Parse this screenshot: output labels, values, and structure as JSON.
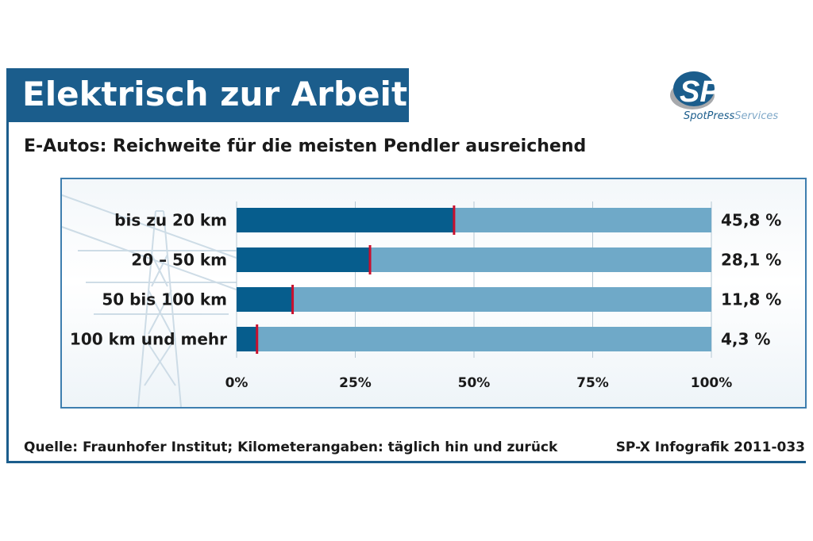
{
  "header": {
    "title": "Elektrisch zur Arbeit",
    "subtitle": "E-Autos: Reichweite für die meisten Pendler ausreichend"
  },
  "logo": {
    "mark": "SPS",
    "tagline_part1": "SpotPress",
    "tagline_part2": "Services"
  },
  "footer": {
    "source": "Quelle: Fraunhofer Institut; Kilometerangaben: täglich hin und zurück",
    "credit": "SP-X Infografik 2011-033"
  },
  "colors": {
    "brand_blue": "#1b5d8c",
    "bar_value": "#065d8d",
    "bar_track": "#6fa9c8",
    "marker": "#c8102e"
  },
  "chart_data": {
    "type": "bar",
    "orientation": "horizontal",
    "categories": [
      "bis zu 20 km",
      "20 – 50 km",
      "50 bis 100 km",
      "100 km und mehr"
    ],
    "values": [
      45.8,
      28.1,
      11.8,
      4.3
    ],
    "value_labels": [
      "45,8 %",
      "28,1 %",
      "11,8 %",
      "4,3 %"
    ],
    "x_ticks": [
      "0%",
      "25%",
      "50%",
      "75%",
      "100%"
    ],
    "xlim": [
      0,
      100
    ],
    "grid": true
  }
}
